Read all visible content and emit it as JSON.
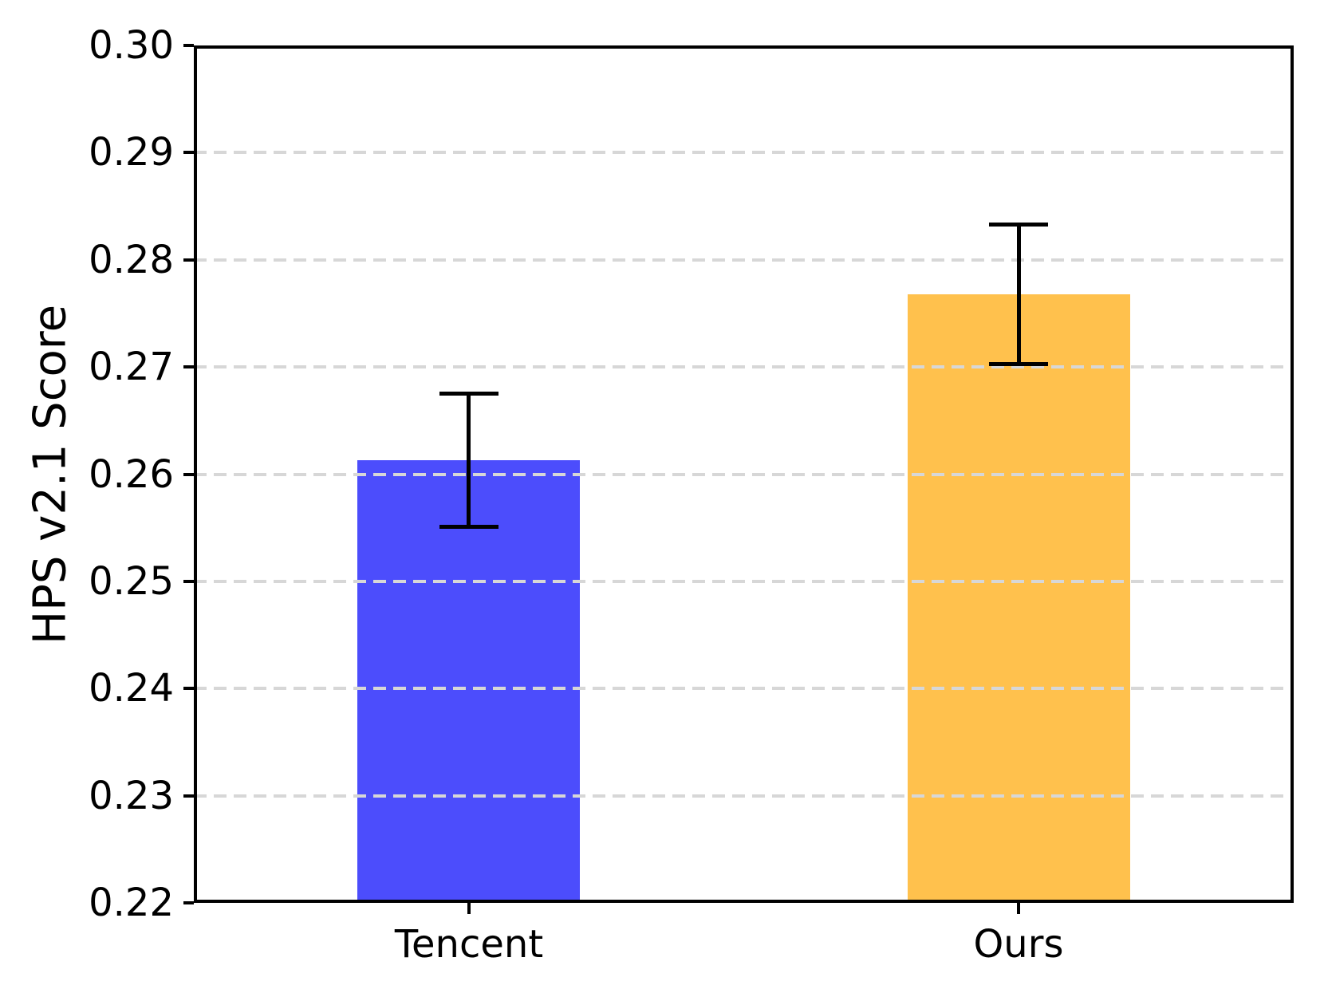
{
  "chart_data": {
    "type": "bar",
    "title": "",
    "xlabel": "",
    "ylabel": "HPS v2.1 Score",
    "categories": [
      "Tencent",
      "Ours"
    ],
    "values": [
      0.2613,
      0.2768
    ],
    "errors": [
      0.0062,
      0.0065
    ],
    "bar_colors": [
      "#4C4DFC",
      "#FFC14D"
    ],
    "error_bar_color": "#000000",
    "ylim": [
      0.22,
      0.3
    ],
    "ytick_step": 0.01,
    "ytick_labels": [
      "0.22",
      "0.23",
      "0.24",
      "0.25",
      "0.26",
      "0.27",
      "0.28",
      "0.29",
      "0.30"
    ],
    "grid": "horizontal-dashed",
    "grid_color": "#d7d7d7",
    "axis_color": "#000000",
    "legend": "none"
  }
}
